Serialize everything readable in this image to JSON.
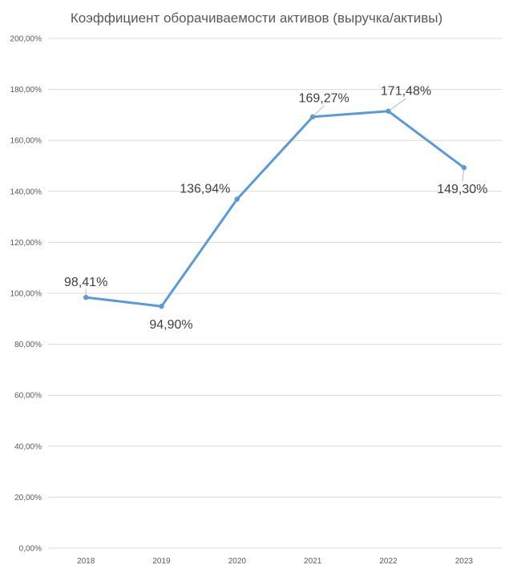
{
  "chart_data": {
    "type": "line",
    "title": "Коэффициент оборачиваемости активов (выручка/активы)",
    "categories": [
      "2018",
      "2019",
      "2020",
      "2021",
      "2022",
      "2023"
    ],
    "series": [
      {
        "values": [
          98.41,
          94.9,
          136.94,
          169.27,
          171.48,
          149.3
        ],
        "data_labels": [
          "98,41%",
          "94,90%",
          "136,94%",
          "169,27%",
          "171,48%",
          "149,30%"
        ],
        "color": "#5b9bd5"
      }
    ],
    "ylim": [
      0,
      200
    ],
    "y_ticks": [
      0,
      20,
      40,
      60,
      80,
      100,
      120,
      140,
      160,
      180,
      200
    ],
    "y_tick_labels": [
      "0,00%",
      "20,00%",
      "40,00%",
      "60,00%",
      "80,00%",
      "100,00%",
      "120,00%",
      "140,00%",
      "160,00%",
      "180,00%",
      "200,00%"
    ],
    "grid": true,
    "legend": "none"
  }
}
